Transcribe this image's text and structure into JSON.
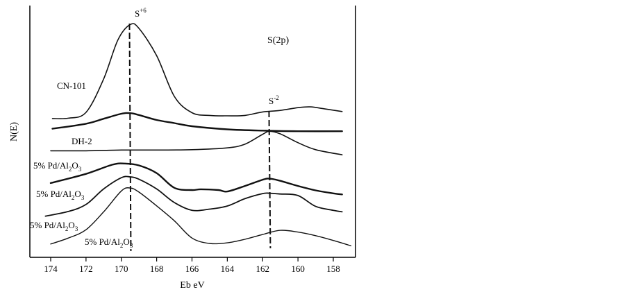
{
  "chart_data": {
    "type": "line",
    "title": "",
    "region_label": "S(2p)",
    "xlabel": "Eb eV",
    "ylabel": "N(E)",
    "x_reversed": true,
    "xlim": [
      175,
      157
    ],
    "x_ticks": [
      174,
      172,
      170,
      168,
      166,
      164,
      162,
      160,
      158
    ],
    "y_ticks_shown": false,
    "grid": false,
    "peak_markers": [
      {
        "base": "S",
        "sup": "+6",
        "x": 169.5
      },
      {
        "base": "S",
        "sup": "-2",
        "x": 161.6
      }
    ],
    "series": [
      {
        "name": "CN-101",
        "points": [
          [
            173.9,
            1.8
          ],
          [
            173,
            1.9
          ],
          [
            172,
            3.4
          ],
          [
            171,
            12
          ],
          [
            170.2,
            22
          ],
          [
            169.5,
            26
          ],
          [
            169,
            25
          ],
          [
            168,
            18
          ],
          [
            167,
            7.5
          ],
          [
            166,
            3.3
          ],
          [
            165,
            2.6
          ],
          [
            164,
            2.5
          ],
          [
            163,
            2.6
          ],
          [
            162,
            3.5
          ],
          [
            161,
            3.9
          ],
          [
            160,
            4.6
          ],
          [
            159.3,
            4.8
          ],
          [
            158.5,
            4.3
          ],
          [
            157.5,
            3.6
          ]
        ]
      },
      {
        "name": "DH-2",
        "points": [
          [
            173.9,
            0.6
          ],
          [
            172,
            1.4
          ],
          [
            171,
            2.2
          ],
          [
            170,
            3.0
          ],
          [
            169.5,
            3.1
          ],
          [
            169,
            2.8
          ],
          [
            168,
            2.0
          ],
          [
            167,
            1.5
          ],
          [
            166,
            1.0
          ],
          [
            164,
            0.5
          ],
          [
            162,
            0.3
          ],
          [
            160,
            0.2
          ],
          [
            157.5,
            0.2
          ]
        ]
      },
      {
        "name": "5% Pd/Al2O3",
        "name_base": "5% Pd/Al",
        "name_sub1": "2",
        "name_mid": "O",
        "name_sub2": "3",
        "points": [
          [
            174,
            2.0
          ],
          [
            172,
            2.0
          ],
          [
            170,
            2.2
          ],
          [
            168,
            2.2
          ],
          [
            166,
            2.3
          ],
          [
            164,
            2.8
          ],
          [
            163,
            3.8
          ],
          [
            162,
            6.5
          ],
          [
            161.6,
            7.3
          ],
          [
            161,
            6.6
          ],
          [
            160,
            4.2
          ],
          [
            159,
            2.3
          ],
          [
            157.5,
            0.9
          ]
        ]
      },
      {
        "name": "5% Pd/Al2O3",
        "name_base": "5% Pd/Al",
        "name_sub1": "2",
        "name_mid": "O",
        "name_sub2": "3",
        "points": [
          [
            174,
            5.3
          ],
          [
            172,
            7.8
          ],
          [
            170.5,
            10.3
          ],
          [
            169.8,
            10.6
          ],
          [
            169,
            10.1
          ],
          [
            168,
            8.0
          ],
          [
            167,
            4.0
          ],
          [
            166,
            3.4
          ],
          [
            165.5,
            3.6
          ],
          [
            164.5,
            3.4
          ],
          [
            164,
            3.0
          ],
          [
            163,
            4.5
          ],
          [
            162,
            6.2
          ],
          [
            161.6,
            6.5
          ],
          [
            161,
            5.9
          ],
          [
            160,
            4.5
          ],
          [
            159,
            3.3
          ],
          [
            158,
            2.5
          ],
          [
            157.5,
            2.2
          ]
        ]
      },
      {
        "name": "5% Pd/Al2O3",
        "name_base": "5% Pd/Al",
        "name_sub1": "2",
        "name_mid": "O",
        "name_sub2": "3",
        "points": [
          [
            174.3,
            1.5
          ],
          [
            173,
            2.7
          ],
          [
            172,
            4.5
          ],
          [
            171,
            8.5
          ],
          [
            170,
            11.4
          ],
          [
            169.5,
            11.6
          ],
          [
            169,
            11.0
          ],
          [
            168,
            8.5
          ],
          [
            167,
            5.0
          ],
          [
            166,
            3.0
          ],
          [
            165,
            3.3
          ],
          [
            164,
            4.1
          ],
          [
            163,
            6.0
          ],
          [
            162,
            7.3
          ],
          [
            161.6,
            7.4
          ],
          [
            161,
            7.2
          ],
          [
            160,
            6.8
          ],
          [
            159,
            4.0
          ],
          [
            158,
            3.0
          ],
          [
            157.5,
            2.6
          ]
        ]
      },
      {
        "name": "5% Pd/Al2O3",
        "name_base": "5% Pd/Al",
        "name_sub1": "2",
        "name_mid": "O",
        "name_sub2": "3",
        "points": [
          [
            174,
            0.6
          ],
          [
            173,
            1.6
          ],
          [
            172,
            3.0
          ],
          [
            171,
            6.0
          ],
          [
            170,
            9.5
          ],
          [
            169.5,
            10.0
          ],
          [
            169,
            9.3
          ],
          [
            168,
            7.0
          ],
          [
            167,
            4.5
          ],
          [
            166,
            1.6
          ],
          [
            165,
            0.7
          ],
          [
            164,
            0.8
          ],
          [
            163,
            1.4
          ],
          [
            162,
            2.2
          ],
          [
            161,
            2.9
          ],
          [
            160,
            2.6
          ],
          [
            159,
            2.0
          ],
          [
            158,
            1.2
          ],
          [
            157,
            0.3
          ]
        ]
      }
    ]
  }
}
